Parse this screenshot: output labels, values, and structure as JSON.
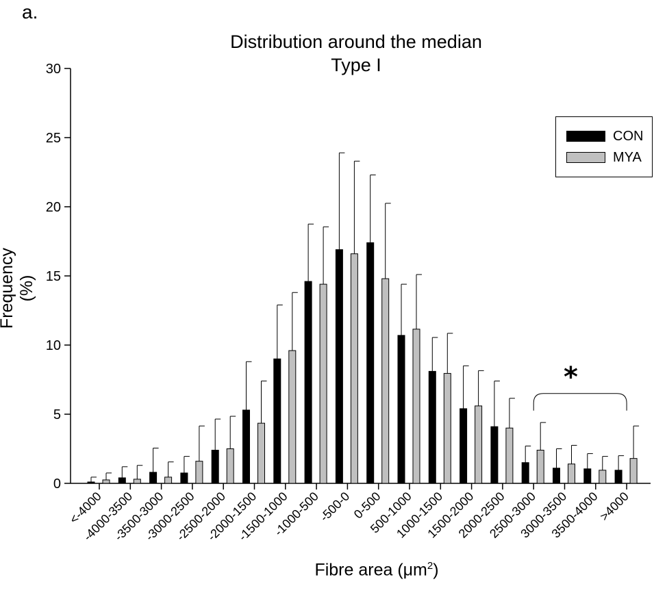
{
  "panel_label": "a.",
  "chart_data": {
    "type": "bar",
    "title": "Distribution around the median",
    "subtitle": "Type I",
    "xlabel": "Fibre area (μm²)",
    "xlabel_main": "Fibre area (",
    "xlabel_unit": "μm",
    "xlabel_sup": "2",
    "xlabel_close": ")",
    "ylabel": "Frequency (%)",
    "ylim": [
      0,
      30
    ],
    "yticks": [
      0,
      5,
      10,
      15,
      20,
      25,
      30
    ],
    "categories": [
      "<-4000",
      "-4000-3500",
      "-3500-3000",
      "-3000-2500",
      "-2500-2000",
      "-2000-1500",
      "-1500-1000",
      "-1000-500",
      "-500-0",
      "0-500",
      "500-1000",
      "1000-1500",
      "1500-2000",
      "2000-2500",
      "2500-3000",
      "3000-3500",
      "3500-4000",
      ">4000"
    ],
    "series": [
      {
        "name": "CON",
        "color": "#000000",
        "values": [
          0.1,
          0.4,
          0.8,
          0.75,
          2.4,
          5.3,
          9.0,
          14.6,
          16.9,
          17.4,
          10.7,
          8.1,
          5.4,
          4.1,
          1.5,
          1.1,
          1.05,
          0.95
        ],
        "errors": [
          0.35,
          0.8,
          1.75,
          1.2,
          2.25,
          3.5,
          3.9,
          4.15,
          7.0,
          4.9,
          3.7,
          2.45,
          3.1,
          3.3,
          1.2,
          1.4,
          1.1,
          1.05
        ]
      },
      {
        "name": "MYA",
        "color": "#c0c0c0",
        "values": [
          0.25,
          0.3,
          0.45,
          1.6,
          2.5,
          4.35,
          9.6,
          14.4,
          16.6,
          14.8,
          11.15,
          7.95,
          5.6,
          4.0,
          2.4,
          1.4,
          0.95,
          1.8
        ],
        "errors": [
          0.5,
          1.0,
          1.1,
          2.55,
          2.35,
          3.05,
          4.2,
          4.15,
          6.7,
          5.45,
          3.95,
          2.9,
          2.55,
          2.15,
          2.0,
          1.35,
          1.0,
          2.35
        ]
      }
    ],
    "annotation": {
      "text": "*",
      "from_category": "2500-3000",
      "to_category": ">4000",
      "y": 6.5
    },
    "legend_position": "top-right",
    "grid": false
  }
}
